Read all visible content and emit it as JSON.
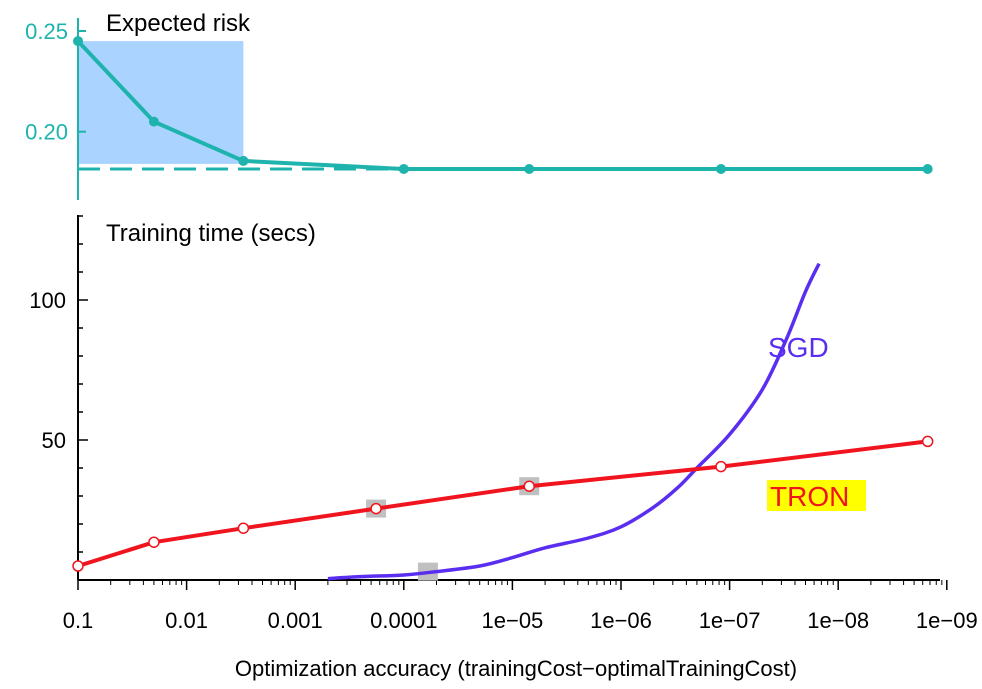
{
  "colors": {
    "teal": "#1fb3ad",
    "risk_fill": "#aad4ff",
    "sgd": "#5a2ef0",
    "tron": "#f0141e",
    "tron_highlight": "#ffff00",
    "marker_box": "#c0c0c0"
  },
  "chart_data": [
    {
      "type": "line",
      "title": "Expected risk",
      "ylim": [
        0.18,
        0.25
      ],
      "yticks": [
        0.25,
        0.2
      ],
      "ytick_labels": [
        "0.25",
        "0.20"
      ],
      "x_scale": "log-reversed",
      "series": [
        {
          "x": [
            0.1,
            0.02,
            0.003,
            0.0001,
            7e-06,
            1.2e-07,
            1.5e-09
          ],
          "y": [
            0.245,
            0.205,
            0.1855,
            0.1815,
            0.1815,
            0.1815,
            0.1815
          ]
        }
      ],
      "optimum_line": {
        "y": 0.1815
      },
      "shaded_region": {
        "x": [
          0.1,
          0.003
        ]
      }
    },
    {
      "type": "line",
      "title": "Training time (secs)",
      "xlabel": "Optimization accuracy (trainingCost−optimalTrainingCost)",
      "x_scale": "log-reversed",
      "xticks": [
        0.1,
        0.01,
        0.001,
        0.0001,
        1e-05,
        1e-06,
        1e-07,
        1e-08,
        1e-09
      ],
      "xtick_labels": [
        "0.1",
        "0.01",
        "0.001",
        "0.0001",
        "1e−05",
        "1e−06",
        "1e−07",
        "1e−08",
        "1e−09"
      ],
      "ylim": [
        0,
        130
      ],
      "yticks": [
        100,
        50
      ],
      "ytick_labels": [
        "100",
        "50"
      ],
      "series": [
        {
          "name": "TRON",
          "x": [
            0.1,
            0.02,
            0.003,
            0.00018,
            7e-06,
            1.2e-07,
            1.5e-09
          ],
          "y": [
            5,
            13.5,
            18.5,
            25.5,
            33.5,
            40.5,
            49.5
          ]
        },
        {
          "name": "SGD",
          "x": [
            0.0005,
            0.00025,
            0.0001,
            5e-05,
            2e-05,
            1e-05,
            5e-06,
            2e-06,
            1e-06,
            5e-07,
            3e-07,
            2e-07,
            1e-07,
            5e-08,
            3e-08,
            2e-08,
            1.5e-08
          ],
          "y": [
            0.5,
            1.2,
            1.8,
            3,
            5,
            8,
            11.5,
            15,
            19,
            26,
            33,
            40,
            52,
            68,
            86,
            103,
            113
          ]
        }
      ],
      "markers": [
        {
          "series": "TRON",
          "x": 0.00018,
          "y": 25.5
        },
        {
          "series": "TRON",
          "x": 7e-06,
          "y": 33.5
        },
        {
          "series": "SGD",
          "x": 6e-05,
          "y": 3
        }
      ],
      "labels": {
        "sgd": "SGD",
        "tron": "TRON"
      }
    }
  ]
}
